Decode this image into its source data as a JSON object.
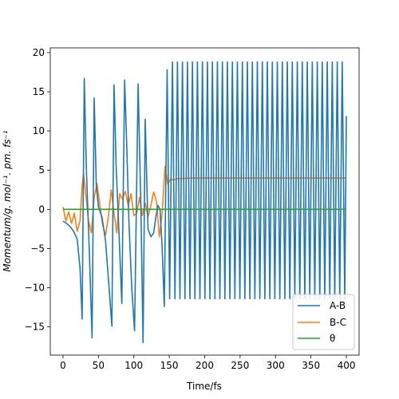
{
  "chart_data": {
    "type": "line",
    "title": "",
    "xlabel": "Time/fs",
    "ylabel": "Momentum/g. mol⁻¹. pm. fs⁻¹",
    "xlim": [
      -18,
      418
    ],
    "ylim": [
      -18.6,
      20.6
    ],
    "xticks": [
      0,
      50,
      100,
      150,
      200,
      250,
      300,
      350,
      400
    ],
    "yticks": [
      -15,
      -10,
      -5,
      0,
      5,
      10,
      15,
      20
    ],
    "xtick_labels": [
      "0",
      "50",
      "100",
      "150",
      "200",
      "250",
      "300",
      "350",
      "400"
    ],
    "ytick_labels": [
      "−15",
      "−10",
      "−5",
      "0",
      "5",
      "10",
      "15",
      "20"
    ],
    "legend_position": "lower-right",
    "grid": false,
    "series": [
      {
        "name": "A-B",
        "color": "#1f77b4",
        "x": [
          0,
          5,
          10,
          15,
          20,
          24,
          27,
          30,
          33,
          37,
          41,
          44,
          47,
          50,
          55,
          60,
          65,
          69,
          72,
          75,
          79,
          83,
          87,
          90,
          93,
          97,
          101,
          106,
          110,
          113,
          116,
          120,
          124,
          128,
          131,
          134,
          137,
          140,
          143,
          147,
          150.5
        ],
        "y": [
          -1.5,
          -1.8,
          -2.2,
          -2.8,
          -3.8,
          -7.5,
          -14.0,
          16.7,
          5.0,
          -5.0,
          -16.4,
          14.2,
          3.0,
          0.3,
          -1.0,
          -4.0,
          -10.0,
          -14.9,
          15.9,
          5.5,
          -3.0,
          -12.0,
          16.5,
          8.0,
          -1.5,
          -10.0,
          -15.5,
          16.0,
          0.0,
          -17.0,
          11.5,
          -2.5,
          -3.5,
          -3.0,
          -1.0,
          0.5,
          0.0,
          -5.0,
          -12.4,
          17.8,
          -11.4
        ],
        "oscillation": {
          "start": 150.5,
          "end": 400,
          "period": 7.05,
          "max": 18.8,
          "min": -11.4,
          "first_peak": 154.5,
          "end_value": 11.9
        }
      },
      {
        "name": "B-C",
        "color": "#ff7f0e",
        "x": [
          0,
          4,
          8,
          12,
          16,
          20,
          24,
          27,
          29,
          32,
          36,
          40,
          44,
          48,
          52,
          56,
          60,
          64,
          68,
          72,
          76,
          80,
          84,
          88,
          92,
          96,
          100,
          104,
          108,
          112,
          116,
          120,
          124,
          128,
          132,
          136,
          140,
          144,
          148,
          152,
          156,
          160,
          180,
          200,
          250,
          300,
          350,
          400
        ],
        "y": [
          0.3,
          -1.5,
          -0.3,
          -1.8,
          -0.5,
          -2.8,
          -1.5,
          3.0,
          4.6,
          2.0,
          -1.5,
          -3.0,
          1.5,
          3.3,
          0.5,
          -2.0,
          -3.3,
          -1.0,
          2.5,
          -0.5,
          -3.0,
          2.0,
          1.3,
          2.3,
          0.5,
          2.0,
          -0.8,
          -0.5,
          1.5,
          -0.8,
          0.8,
          -1.0,
          0.5,
          2.2,
          1.0,
          -3.5,
          -0.5,
          5.5,
          3.2,
          3.9,
          3.7,
          3.9,
          4.0,
          4.0,
          4.0,
          4.0,
          4.0,
          4.0
        ]
      },
      {
        "name": "θ",
        "color": "#2ca02c",
        "x": [
          0,
          400
        ],
        "y": [
          0,
          0
        ]
      }
    ]
  }
}
